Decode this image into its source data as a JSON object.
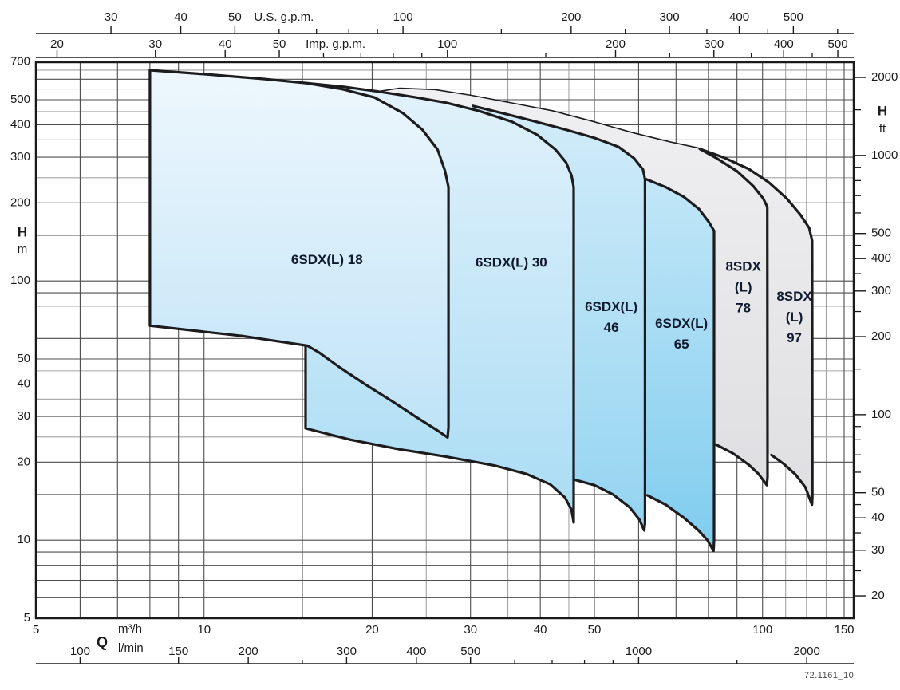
{
  "watermark": "72.1161_10",
  "chart_data": {
    "type": "area",
    "description": "Pump family selection envelope chart, head H vs flow Q, log-log scales",
    "x_axis_m3h": {
      "unit_label": "m³/h",
      "q_label": "Q",
      "min": 5,
      "max": 146,
      "labeled": [
        5,
        10,
        20,
        30,
        40,
        50,
        100,
        150
      ]
    },
    "x_axis_lmin": {
      "unit_label": "l/min",
      "factor_from_m3h": 16.6667,
      "labeled": [
        100,
        150,
        200,
        300,
        400,
        500,
        1000,
        2000
      ],
      "minor": [
        250,
        600,
        700,
        800,
        900,
        1500
      ]
    },
    "x_axis_us": {
      "title": "U.S. g.p.m.",
      "factor_from_m3h": 4.40287,
      "labeled": [
        30,
        40,
        50,
        100,
        200,
        300,
        400,
        500
      ],
      "minor": [
        60,
        70,
        80,
        90,
        150,
        250,
        350,
        450,
        600
      ],
      "title_at_m3h": 13.9
    },
    "x_axis_imp": {
      "title": "Imp. g.p.m.",
      "factor_from_m3h": 3.66615,
      "labeled": [
        20,
        30,
        40,
        50,
        100,
        200,
        300,
        400,
        500
      ],
      "minor": [
        60,
        70,
        80,
        90,
        150,
        250,
        350,
        450
      ],
      "title_at_m3h": 17.2
    },
    "y_axis_m": {
      "unit_label": "m",
      "h_label": "H",
      "min": 5,
      "max": 698,
      "labeled": [
        700,
        500,
        400,
        300,
        200,
        100,
        50,
        40,
        30,
        20,
        10,
        5
      ]
    },
    "y_axis_ft": {
      "unit_label": "ft",
      "h_label": "H",
      "factor_to_m": 0.3048,
      "labeled": [
        2000,
        1000,
        500,
        400,
        300,
        200,
        100,
        50,
        40,
        30,
        20
      ],
      "minor": [
        1500,
        900,
        800,
        700,
        600,
        450,
        350,
        250,
        150,
        90,
        80,
        70,
        60,
        45,
        35,
        25
      ]
    },
    "grid": {
      "x_dark": [
        5,
        6,
        7,
        8,
        9,
        10,
        15,
        20,
        30,
        40,
        50,
        60,
        70,
        80,
        90,
        100,
        120,
        140
      ],
      "x_light": [
        25,
        35,
        45,
        110,
        130
      ],
      "y_dark": [
        5,
        6,
        7,
        8,
        9,
        10,
        15,
        20,
        30,
        40,
        50,
        60,
        70,
        80,
        90,
        100,
        150,
        200,
        300,
        400,
        500,
        600,
        700
      ],
      "y_light": [
        25,
        35,
        45,
        250,
        350,
        450,
        550,
        650
      ]
    },
    "colors": {
      "outline": "#1c1c1e",
      "grid_dark": "#4d4d4d",
      "grid_light": "#a3a3a3",
      "frame": "#1a1a1a",
      "axis_text": "#1a1a1a",
      "label_text": "#101a2e"
    },
    "regions": [
      {
        "id": "8sdxl-97",
        "label": {
          "lines": [
            "8SDX",
            "(L)",
            "97"
          ],
          "q": 114,
          "h": 72
        },
        "color_top": "#f0f0f2",
        "color_bottom": "#dfdfe2",
        "fill": [
          [
            19.4,
            525
          ],
          [
            21.6,
            452
          ],
          [
            23.9,
            390
          ],
          [
            25.5,
            334
          ],
          [
            26.5,
            277
          ],
          [
            27.1,
            213
          ],
          [
            27.2,
            142
          ],
          [
            27.3,
            81
          ],
          [
            27.5,
            49.4
          ],
          [
            28.2,
            33.7
          ],
          [
            28.7,
            32.3
          ],
          [
            33.1,
            30.9
          ],
          [
            43.1,
            28.8
          ],
          [
            56.0,
            26.9
          ],
          [
            73.0,
            24.9
          ],
          [
            91.6,
            23.0
          ],
          [
            103.7,
            21.3
          ],
          [
            109.1,
            19.7
          ],
          [
            114.6,
            17.9
          ],
          [
            119.3,
            16.0
          ],
          [
            122.6,
            13.7
          ],
          [
            122.8,
            14.7
          ],
          [
            122.8,
            143
          ],
          [
            121.2,
            160
          ],
          [
            116.9,
            180
          ],
          [
            110.5,
            208
          ],
          [
            102.6,
            240
          ],
          [
            94.6,
            270
          ],
          [
            85.3,
            299
          ],
          [
            77.2,
            323
          ],
          [
            68.2,
            342
          ],
          [
            58.2,
            372
          ],
          [
            49.5,
            411
          ],
          [
            42.0,
            451
          ],
          [
            35.6,
            483
          ],
          [
            30.1,
            517
          ],
          [
            25.9,
            544
          ],
          [
            22.4,
            551
          ]
        ],
        "strokes": [
          [
            [
              19.4,
              525
            ],
            [
              22.4,
              551
            ],
            [
              25.9,
              544
            ],
            [
              30.1,
              517
            ],
            [
              35.6,
              483
            ],
            [
              42.0,
              451
            ],
            [
              49.5,
              411
            ],
            [
              58.2,
              372
            ],
            [
              68.2,
              342
            ],
            [
              77.2,
              323
            ],
            [
              85.3,
              299
            ],
            [
              94.6,
              270
            ],
            [
              102.6,
              240
            ],
            [
              110.5,
              208
            ],
            [
              116.9,
              180
            ],
            [
              121.2,
              160
            ],
            [
              122.7,
              143
            ],
            [
              122.8,
              14.7
            ],
            [
              122.6,
              13.7
            ],
            [
              119.3,
              16.0
            ],
            [
              114.6,
              17.9
            ],
            [
              109.1,
              19.7
            ],
            [
              103.7,
              21.3
            ]
          ]
        ]
      },
      {
        "id": "8sdxl-78",
        "label": {
          "lines": [
            "8SDX",
            "(L)",
            "78"
          ],
          "q": 92.4,
          "h": 94
        },
        "color_top": "#f0f0f2",
        "color_bottom": "#dfdfe2",
        "fill": [
          [
            19.4,
            525
          ],
          [
            21.6,
            452
          ],
          [
            23.9,
            390
          ],
          [
            25.5,
            334
          ],
          [
            26.5,
            277
          ],
          [
            27.1,
            213
          ],
          [
            27.2,
            142
          ],
          [
            27.3,
            81
          ],
          [
            27.5,
            49.4
          ],
          [
            28.2,
            33.7
          ],
          [
            28.7,
            33.1
          ],
          [
            35.6,
            31.3
          ],
          [
            46.1,
            29.2
          ],
          [
            60.2,
            27.3
          ],
          [
            73.0,
            25.1
          ],
          [
            82.5,
            23.4
          ],
          [
            88.6,
            21.6
          ],
          [
            94.6,
            19.5
          ],
          [
            98.4,
            18.0
          ],
          [
            101.8,
            16.3
          ],
          [
            102.1,
            17.5
          ],
          [
            102.1,
            193
          ],
          [
            100.3,
            208
          ],
          [
            96.1,
            233
          ],
          [
            90.0,
            265
          ],
          [
            82.8,
            297
          ],
          [
            77.2,
            323
          ],
          [
            68.2,
            342
          ],
          [
            58.2,
            372
          ],
          [
            49.5,
            411
          ],
          [
            42.0,
            451
          ],
          [
            35.6,
            483
          ],
          [
            30.1,
            517
          ],
          [
            25.9,
            544
          ],
          [
            22.4,
            551
          ]
        ],
        "strokes": [
          [
            [
              77.2,
              323
            ],
            [
              82.8,
              297
            ],
            [
              90.0,
              265
            ],
            [
              96.1,
              233
            ],
            [
              100.3,
              208
            ],
            [
              102.0,
              193
            ],
            [
              102.1,
              17.5
            ],
            [
              101.8,
              16.3
            ],
            [
              98.4,
              18.0
            ],
            [
              94.6,
              19.5
            ],
            [
              88.6,
              21.6
            ],
            [
              82.5,
              23.4
            ]
          ]
        ]
      },
      {
        "id": "6sdxl-65",
        "label": {
          "lines": [
            "6SDX(L)",
            "65"
          ],
          "q": 71.6,
          "h": 62
        },
        "color_top": "#c6e8f8",
        "color_bottom": "#7fccee",
        "fill": [
          [
            37.8,
            305
          ],
          [
            43.1,
            291
          ],
          [
            50.0,
            274
          ],
          [
            55.2,
            260
          ],
          [
            61.8,
            247
          ],
          [
            67.1,
            230
          ],
          [
            72.3,
            211
          ],
          [
            77.0,
            189
          ],
          [
            80.1,
            169
          ],
          [
            81.9,
            156
          ],
          [
            81.9,
            10.0
          ],
          [
            81.7,
            9.1
          ],
          [
            79.7,
            10.0
          ],
          [
            76.8,
            10.9
          ],
          [
            72.3,
            12.2
          ],
          [
            67.1,
            13.7
          ],
          [
            62.2,
            14.9
          ],
          [
            56.0,
            16.3
          ],
          [
            46.1,
            18.1
          ],
          [
            37.8,
            20.6
          ]
        ],
        "strokes": [
          [
            [
              61.8,
              247
            ],
            [
              67.1,
              230
            ],
            [
              72.3,
              211
            ],
            [
              77.0,
              189
            ],
            [
              80.1,
              169
            ],
            [
              81.9,
              156
            ],
            [
              81.9,
              10.0
            ],
            [
              81.7,
              9.1
            ],
            [
              79.7,
              10.0
            ],
            [
              76.8,
              10.9
            ],
            [
              72.3,
              12.2
            ],
            [
              67.1,
              13.7
            ],
            [
              62.2,
              14.9
            ]
          ]
        ]
      },
      {
        "id": "6sdxl-46",
        "label": {
          "lines": [
            "6SDX(L)",
            "46"
          ],
          "q": 53.6,
          "h": 72
        },
        "color_top": "#d2ecf9",
        "color_bottom": "#93d4f1",
        "fill": [
          [
            27.1,
            459
          ],
          [
            30.3,
            473
          ],
          [
            34.2,
            444
          ],
          [
            38.8,
            414
          ],
          [
            44.3,
            384
          ],
          [
            50.0,
            356
          ],
          [
            55.2,
            329
          ],
          [
            58.9,
            297
          ],
          [
            61.1,
            269
          ],
          [
            61.6,
            247
          ],
          [
            61.6,
            11.6
          ],
          [
            61.4,
            10.9
          ],
          [
            60.2,
            12.0
          ],
          [
            57.8,
            13.4
          ],
          [
            54.0,
            15.0
          ],
          [
            50.0,
            16.3
          ],
          [
            46.1,
            17.1
          ],
          [
            40.3,
            18.1
          ],
          [
            33.1,
            20.8
          ],
          [
            27.1,
            23.0
          ]
        ],
        "strokes": [
          [
            [
              30.3,
              473
            ],
            [
              34.2,
              444
            ],
            [
              38.8,
              414
            ],
            [
              44.3,
              384
            ],
            [
              50.0,
              356
            ],
            [
              55.2,
              329
            ],
            [
              58.9,
              297
            ],
            [
              61.1,
              269
            ],
            [
              61.6,
              247
            ],
            [
              61.6,
              11.6
            ],
            [
              61.4,
              10.9
            ],
            [
              60.2,
              12.0
            ],
            [
              57.8,
              13.4
            ],
            [
              54.0,
              15.0
            ],
            [
              50.0,
              16.3
            ],
            [
              46.1,
              17.1
            ]
          ]
        ]
      },
      {
        "id": "6sdxl-30",
        "label": {
          "lines": [
            "6SDX(L) 30"
          ],
          "q": 35.5,
          "h": 117
        },
        "color_top": "#e2f2fb",
        "color_bottom": "#a9dcf4",
        "fill": [
          [
            15.2,
            580
          ],
          [
            17.8,
            561
          ],
          [
            20.6,
            537
          ],
          [
            24.0,
            510
          ],
          [
            27.1,
            487
          ],
          [
            31.1,
            452
          ],
          [
            35.6,
            411
          ],
          [
            39.5,
            366
          ],
          [
            42.6,
            321
          ],
          [
            44.5,
            286
          ],
          [
            45.5,
            255
          ],
          [
            45.9,
            230
          ],
          [
            45.9,
            12.3
          ],
          [
            45.9,
            11.7
          ],
          [
            45.5,
            13.1
          ],
          [
            44.3,
            14.6
          ],
          [
            41.7,
            16.4
          ],
          [
            37.8,
            18.0
          ],
          [
            33.1,
            19.4
          ],
          [
            27.1,
            21.0
          ],
          [
            22.4,
            22.4
          ],
          [
            18.3,
            24.4
          ],
          [
            15.2,
            27.0
          ]
        ],
        "strokes": [],
        "stroke_closed": true
      },
      {
        "id": "6sdxl-18",
        "label": {
          "lines": [
            "6SDX(L) 18"
          ],
          "q": 16.6,
          "h": 120
        },
        "color_top": "#eef7fd",
        "color_bottom": "#bfe3f7",
        "fill": [
          [
            8.0,
            650
          ],
          [
            10.1,
            627
          ],
          [
            12.8,
            601
          ],
          [
            15.2,
            580
          ],
          [
            17.7,
            549
          ],
          [
            20.2,
            510
          ],
          [
            22.7,
            444
          ],
          [
            24.6,
            383
          ],
          [
            26.2,
            321
          ],
          [
            27.0,
            266
          ],
          [
            27.4,
            230
          ],
          [
            27.4,
            27.2
          ],
          [
            27.3,
            24.9
          ],
          [
            26.1,
            26.6
          ],
          [
            23.9,
            30.0
          ],
          [
            21.7,
            34.4
          ],
          [
            19.4,
            40.0
          ],
          [
            17.5,
            46.4
          ],
          [
            16.1,
            52.8
          ],
          [
            15.3,
            56.3
          ],
          [
            11.7,
            61.3
          ],
          [
            8.0,
            67.2
          ]
        ],
        "strokes": [],
        "stroke_closed": true
      }
    ]
  }
}
